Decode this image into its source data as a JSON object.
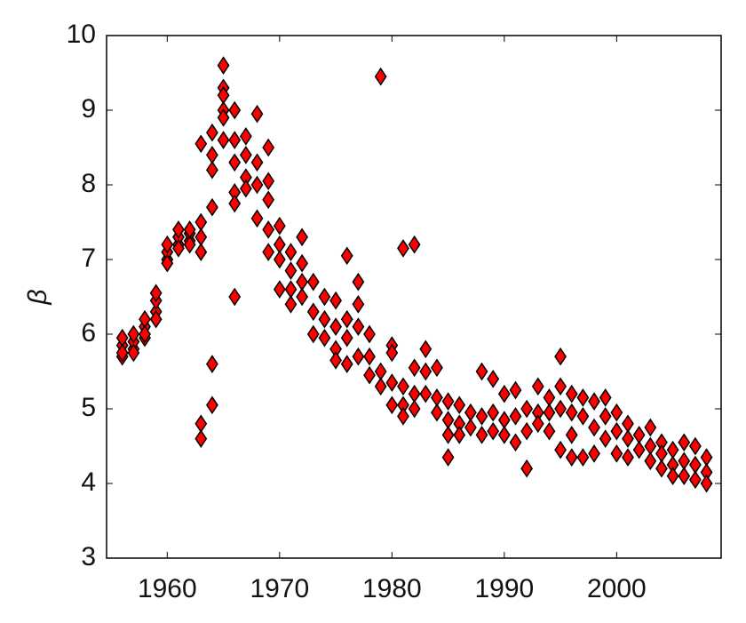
{
  "chart_data": {
    "type": "scatter",
    "y_label": "β",
    "x": [
      1956,
      1956,
      1956,
      1956,
      1957,
      1957,
      1957,
      1957,
      1958,
      1958,
      1958,
      1958,
      1959,
      1959,
      1959,
      1959,
      1960,
      1960,
      1960,
      1960,
      1961,
      1961,
      1961,
      1961,
      1962,
      1962,
      1962,
      1962,
      1963,
      1963,
      1963,
      1963,
      1963,
      1963,
      1964,
      1964,
      1964,
      1964,
      1964,
      1964,
      1965,
      1965,
      1965,
      1965,
      1965,
      1965,
      1966,
      1966,
      1966,
      1966,
      1966,
      1966,
      1967,
      1967,
      1967,
      1967,
      1968,
      1968,
      1968,
      1968,
      1969,
      1969,
      1969,
      1969,
      1969,
      1970,
      1970,
      1970,
      1970,
      1971,
      1971,
      1971,
      1971,
      1972,
      1972,
      1972,
      1972,
      1973,
      1973,
      1973,
      1974,
      1974,
      1974,
      1975,
      1975,
      1975,
      1975,
      1976,
      1976,
      1976,
      1976,
      1977,
      1977,
      1977,
      1977,
      1978,
      1978,
      1978,
      1979,
      1979,
      1979,
      1980,
      1980,
      1980,
      1980,
      1981,
      1981,
      1981,
      1981,
      1982,
      1982,
      1982,
      1982,
      1983,
      1983,
      1983,
      1984,
      1984,
      1984,
      1985,
      1985,
      1985,
      1985,
      1986,
      1986,
      1986,
      1987,
      1987,
      1988,
      1988,
      1988,
      1989,
      1989,
      1989,
      1990,
      1990,
      1990,
      1991,
      1991,
      1991,
      1992,
      1992,
      1992,
      1993,
      1993,
      1993,
      1994,
      1994,
      1994,
      1995,
      1995,
      1995,
      1995,
      1996,
      1996,
      1996,
      1996,
      1997,
      1997,
      1997,
      1998,
      1998,
      1998,
      1999,
      1999,
      1999,
      2000,
      2000,
      2000,
      2001,
      2001,
      2001,
      2002,
      2002,
      2003,
      2003,
      2003,
      2004,
      2004,
      2004,
      2005,
      2005,
      2005,
      2006,
      2006,
      2006,
      2007,
      2007,
      2007,
      2008,
      2008,
      2008
    ],
    "values": [
      5.7,
      5.85,
      5.95,
      5.75,
      5.8,
      5.9,
      6.0,
      5.75,
      5.95,
      6.1,
      6.2,
      6.0,
      6.3,
      6.45,
      6.55,
      6.2,
      7.0,
      7.1,
      7.2,
      6.95,
      7.2,
      7.3,
      7.15,
      7.4,
      7.25,
      7.35,
      7.2,
      7.4,
      7.5,
      7.1,
      8.55,
      4.8,
      4.6,
      7.3,
      8.2,
      8.4,
      8.7,
      7.7,
      5.6,
      5.05,
      9.6,
      9.3,
      9.2,
      9.0,
      8.9,
      8.6,
      9.0,
      8.6,
      8.3,
      7.9,
      7.75,
      6.5,
      8.65,
      8.4,
      8.1,
      7.95,
      8.95,
      8.3,
      8.0,
      7.55,
      8.5,
      8.05,
      7.8,
      7.4,
      7.1,
      7.45,
      7.2,
      7.0,
      6.6,
      7.1,
      6.85,
      6.6,
      6.4,
      7.3,
      6.95,
      6.7,
      6.5,
      6.7,
      6.3,
      6.0,
      6.5,
      6.2,
      5.95,
      6.45,
      6.1,
      5.8,
      5.65,
      7.05,
      6.2,
      5.95,
      5.6,
      6.7,
      6.4,
      6.1,
      5.7,
      6.0,
      5.7,
      5.45,
      9.45,
      5.5,
      5.3,
      5.85,
      5.75,
      5.35,
      5.05,
      7.15,
      5.3,
      5.05,
      4.9,
      7.2,
      5.55,
      5.2,
      5.0,
      5.8,
      5.5,
      5.2,
      5.55,
      5.15,
      4.95,
      5.1,
      4.85,
      4.65,
      4.35,
      5.05,
      4.8,
      4.65,
      4.95,
      4.75,
      5.5,
      4.9,
      4.65,
      5.4,
      4.95,
      4.7,
      5.2,
      4.85,
      4.65,
      5.25,
      4.9,
      4.55,
      5.0,
      4.7,
      4.2,
      5.3,
      4.95,
      4.8,
      5.15,
      4.95,
      4.7,
      5.7,
      5.3,
      5.0,
      4.45,
      5.2,
      4.95,
      4.65,
      4.35,
      5.15,
      4.9,
      4.35,
      5.1,
      4.75,
      4.4,
      5.15,
      4.9,
      4.6,
      4.95,
      4.7,
      4.4,
      4.8,
      4.6,
      4.35,
      4.65,
      4.45,
      4.75,
      4.5,
      4.3,
      4.55,
      4.4,
      4.2,
      4.45,
      4.25,
      4.1,
      4.55,
      4.3,
      4.1,
      4.5,
      4.25,
      4.05,
      4.35,
      4.15,
      4.0
    ],
    "color": "#ff0000",
    "xlim": [
      1954.6,
      2009.3
    ],
    "ylim": [
      3,
      10
    ],
    "xticks": [
      1960,
      1970,
      1980,
      1990,
      2000
    ],
    "yticks": [
      3,
      4,
      5,
      6,
      7,
      8,
      9,
      10
    ]
  }
}
